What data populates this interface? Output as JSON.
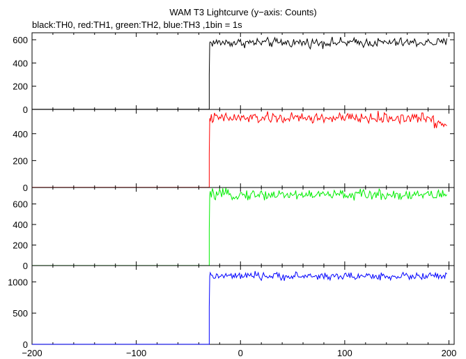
{
  "chart_data": {
    "type": "line",
    "title": "WAM T3 Lightcurve (y−axis: Counts)",
    "subtitle": "black:TH0, red:TH1, green:TH2, blue:TH3 ,1bin = 1s",
    "xlim": [
      -200,
      205
    ],
    "xticks": [
      -200,
      -100,
      0,
      100,
      200
    ],
    "x_tick_labels": [
      "−200",
      "−100",
      "0",
      "100",
      "200"
    ],
    "grid": false,
    "step_time": -30,
    "end_time": 198,
    "panels": [
      {
        "name": "TH0",
        "color": "#000000",
        "ylim": [
          0,
          660
        ],
        "yticks": [
          0,
          200,
          400,
          600
        ],
        "y_tick_labels": [
          "0",
          "200",
          "400",
          "600"
        ],
        "baseline": 1,
        "rise_value": 300,
        "level": 575,
        "noise": 20
      },
      {
        "name": "TH1",
        "color": "#ff0000",
        "ylim": [
          0,
          580
        ],
        "yticks": [
          0,
          200,
          400
        ],
        "y_tick_labels": [
          "0",
          "200",
          "400"
        ],
        "baseline": 1,
        "rise_value": 250,
        "level": 515,
        "noise": 20,
        "tail_level": 480
      },
      {
        "name": "TH2",
        "color": "#00ee00",
        "ylim": [
          0,
          760
        ],
        "yticks": [
          0,
          200,
          400,
          600
        ],
        "y_tick_labels": [
          "0",
          "200",
          "400",
          "600"
        ],
        "baseline": 1,
        "rise_value": 350,
        "level": 690,
        "noise": 25
      },
      {
        "name": "TH3",
        "color": "#0000ff",
        "ylim": [
          0,
          1260
        ],
        "yticks": [
          0,
          500,
          1000
        ],
        "y_tick_labels": [
          "0",
          "500",
          "1000"
        ],
        "baseline": 1,
        "rise_value": 600,
        "level": 1090,
        "noise": 30
      }
    ]
  }
}
